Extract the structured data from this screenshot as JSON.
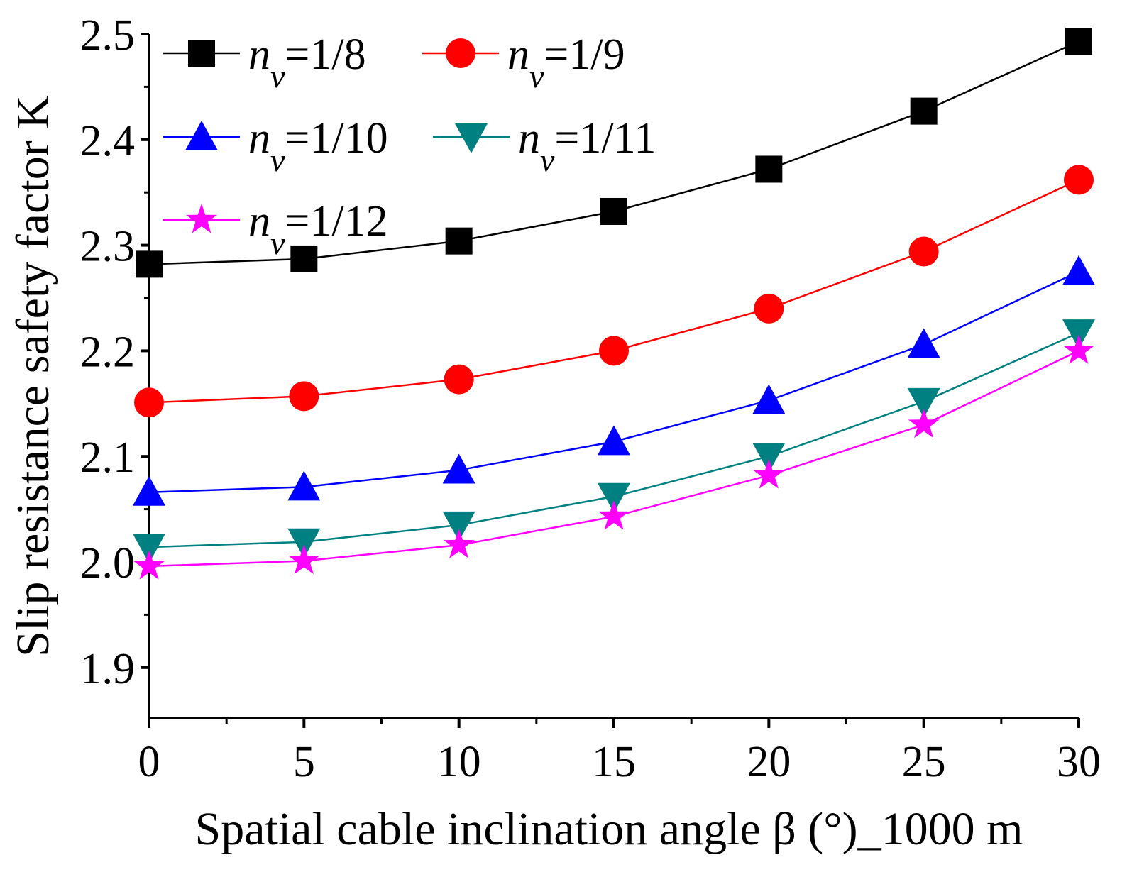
{
  "chart_data": {
    "type": "line",
    "title": "",
    "xlabel": "Spatial cable inclination angle β (°)_1000 m",
    "ylabel": "Slip resistance safety factor K",
    "xlim": [
      0,
      30
    ],
    "ylim": [
      1.85,
      2.5
    ],
    "x_ticks": [
      0,
      5,
      10,
      15,
      20,
      25,
      30
    ],
    "y_ticks": [
      1.9,
      2.0,
      2.1,
      2.2,
      2.3,
      2.4,
      2.5
    ],
    "x_tick_labels": [
      "0",
      "5",
      "10",
      "15",
      "20",
      "25",
      "30"
    ],
    "y_tick_labels": [
      "1.9",
      "2.0",
      "2.1",
      "2.2",
      "2.3",
      "2.4",
      "2.5"
    ],
    "grid": false,
    "legend_placement": "top-left",
    "x": [
      0,
      5,
      10,
      15,
      20,
      25,
      30
    ],
    "series": [
      {
        "name": "nv=1/8",
        "label_main": "n",
        "label_sub": "v",
        "label_rest": "=1/8",
        "color": "#000000",
        "marker": "square",
        "values": [
          2.282,
          2.287,
          2.304,
          2.332,
          2.372,
          2.427,
          2.493
        ]
      },
      {
        "name": "nv=1/9",
        "label_main": "n",
        "label_sub": "v",
        "label_rest": "=1/9",
        "color": "#ff0000",
        "marker": "circle",
        "values": [
          2.151,
          2.157,
          2.173,
          2.2,
          2.24,
          2.294,
          2.362
        ]
      },
      {
        "name": "nv=1/10",
        "label_main": "n",
        "label_sub": "v",
        "label_rest": "=1/10",
        "color": "#0000ff",
        "marker": "triangle-up",
        "values": [
          2.066,
          2.071,
          2.087,
          2.114,
          2.153,
          2.206,
          2.275
        ]
      },
      {
        "name": "nv=1/11",
        "label_main": "n",
        "label_sub": "v",
        "label_rest": "=1/11",
        "color": "#008080",
        "marker": "triangle-down",
        "values": [
          2.014,
          2.019,
          2.035,
          2.062,
          2.1,
          2.152,
          2.217
        ]
      },
      {
        "name": "nv=1/12",
        "label_main": "n",
        "label_sub": "v",
        "label_rest": "=1/12",
        "color": "#ff00ff",
        "marker": "star",
        "values": [
          1.996,
          2.001,
          2.016,
          2.043,
          2.082,
          2.13,
          2.2
        ]
      }
    ]
  }
}
